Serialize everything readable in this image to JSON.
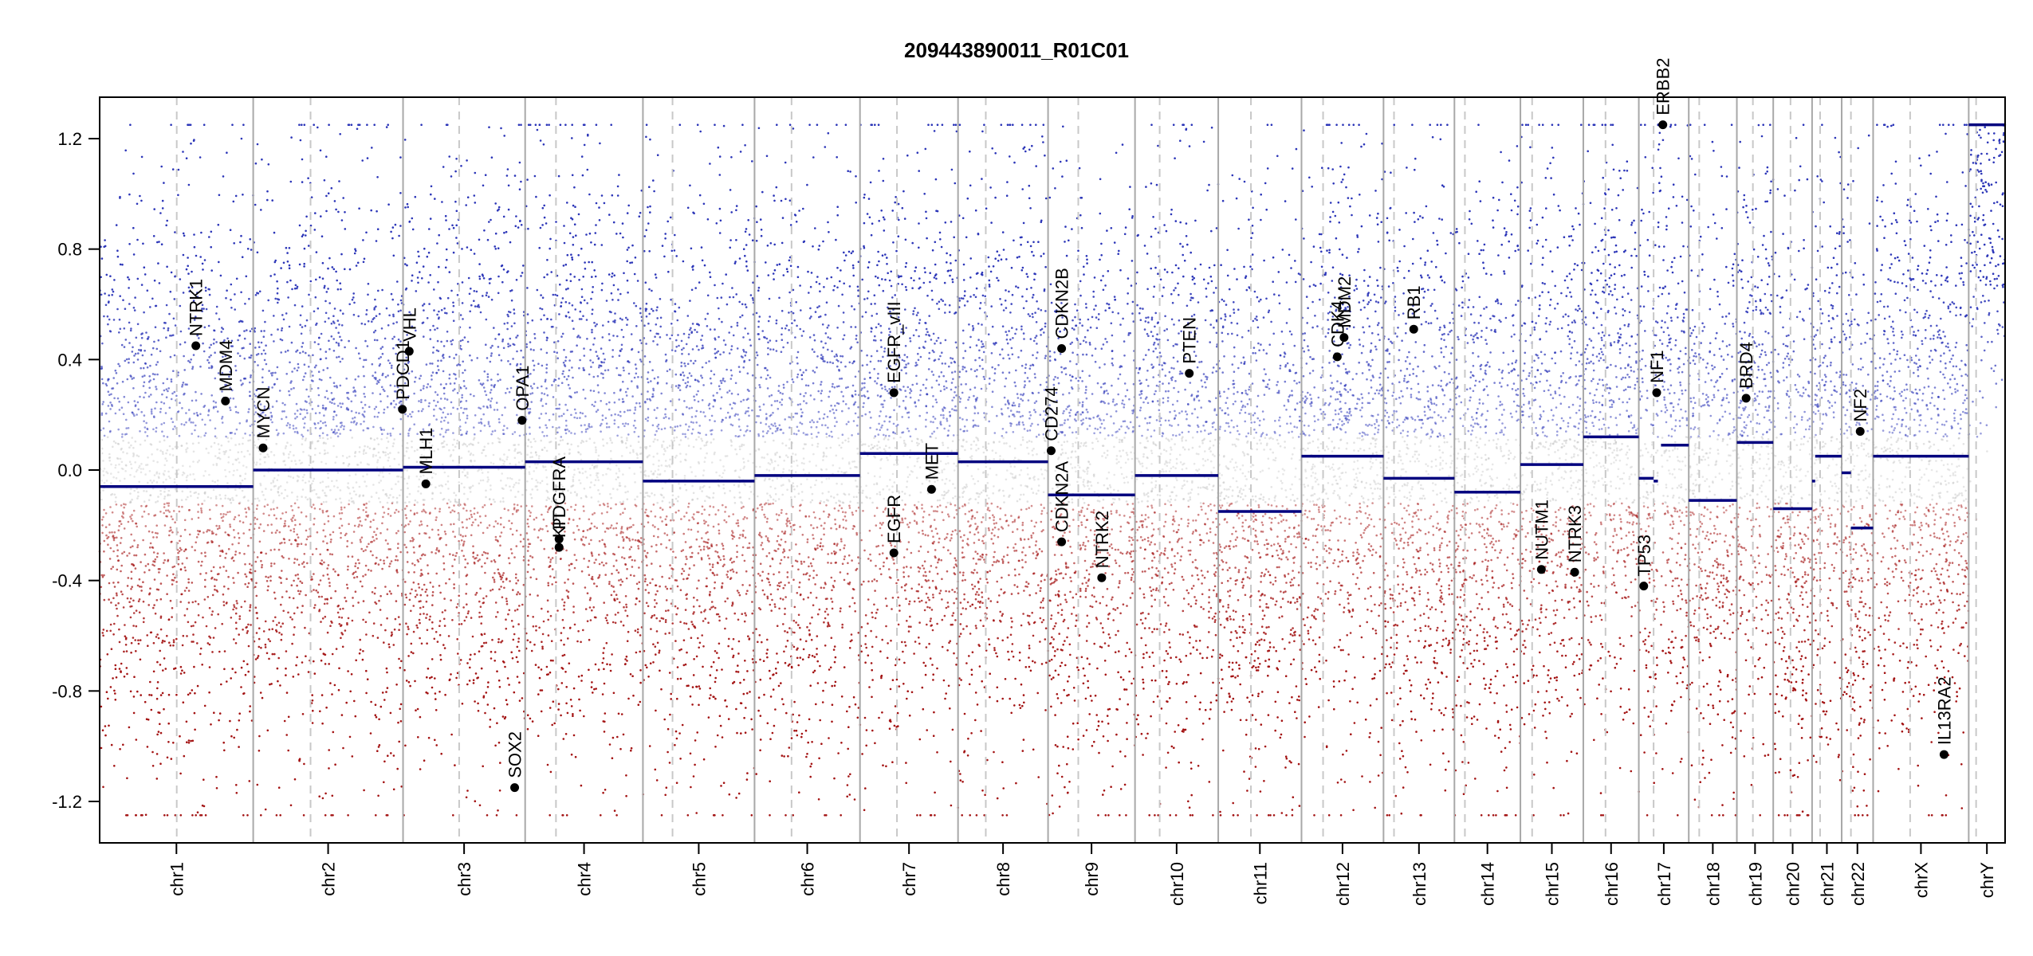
{
  "chart_data": {
    "type": "scatter",
    "title": "209443890011_R01C01",
    "xlabel": "",
    "ylabel": "",
    "ylim": [
      -1.35,
      1.35
    ],
    "yticks": [
      "1.2",
      "0.8",
      "0.4",
      "0.0",
      "-0.4",
      "-0.8",
      "-1.2"
    ],
    "ytick_values": [
      1.2,
      0.8,
      0.4,
      0.0,
      -0.4,
      -0.8,
      -1.2
    ],
    "grid": "chromosome boundaries (solid) and centromeres (dashed)",
    "colors": {
      "gain": "#2b35b8",
      "neutral": "#bdbdbd",
      "loss": "#a31212",
      "segment": "#00007f",
      "marker": "#000000"
    },
    "chromosomes": [
      {
        "name": "chr1",
        "length": 249,
        "cent": 125
      },
      {
        "name": "chr2",
        "length": 243,
        "cent": 93
      },
      {
        "name": "chr3",
        "length": 198,
        "cent": 91
      },
      {
        "name": "chr4",
        "length": 191,
        "cent": 50
      },
      {
        "name": "chr5",
        "length": 181,
        "cent": 48
      },
      {
        "name": "chr6",
        "length": 171,
        "cent": 60
      },
      {
        "name": "chr7",
        "length": 159,
        "cent": 60
      },
      {
        "name": "chr8",
        "length": 146,
        "cent": 45
      },
      {
        "name": "chr9",
        "length": 141,
        "cent": 49
      },
      {
        "name": "chr10",
        "length": 135,
        "cent": 40
      },
      {
        "name": "chr11",
        "length": 135,
        "cent": 53
      },
      {
        "name": "chr12",
        "length": 133,
        "cent": 35
      },
      {
        "name": "chr13",
        "length": 115,
        "cent": 17
      },
      {
        "name": "chr14",
        "length": 107,
        "cent": 17
      },
      {
        "name": "chr15",
        "length": 102,
        "cent": 19
      },
      {
        "name": "chr16",
        "length": 90,
        "cent": 36
      },
      {
        "name": "chr17",
        "length": 81,
        "cent": 24
      },
      {
        "name": "chr18",
        "length": 78,
        "cent": 17
      },
      {
        "name": "chr19",
        "length": 59,
        "cent": 26
      },
      {
        "name": "chr20",
        "length": 63,
        "cent": 28
      },
      {
        "name": "chr21",
        "length": 48,
        "cent": 13
      },
      {
        "name": "chr22",
        "length": 51,
        "cent": 15
      },
      {
        "name": "chrX",
        "length": 155,
        "cent": 60
      },
      {
        "name": "chrY",
        "length": 59,
        "cent": 12
      }
    ],
    "segments": [
      {
        "chr": "chr1",
        "start": 0,
        "end": 249,
        "value": -0.06
      },
      {
        "chr": "chr2",
        "start": 0,
        "end": 243,
        "value": 0.0
      },
      {
        "chr": "chr3",
        "start": 0,
        "end": 198,
        "value": 0.01
      },
      {
        "chr": "chr4",
        "start": 0,
        "end": 191,
        "value": 0.03
      },
      {
        "chr": "chr5",
        "start": 0,
        "end": 181,
        "value": -0.04
      },
      {
        "chr": "chr6",
        "start": 0,
        "end": 171,
        "value": -0.02
      },
      {
        "chr": "chr7",
        "start": 0,
        "end": 159,
        "value": 0.06
      },
      {
        "chr": "chr8",
        "start": 0,
        "end": 146,
        "value": 0.03
      },
      {
        "chr": "chr9",
        "start": 0,
        "end": 141,
        "value": -0.09
      },
      {
        "chr": "chr10",
        "start": 0,
        "end": 135,
        "value": -0.02
      },
      {
        "chr": "chr11",
        "start": 0,
        "end": 135,
        "value": -0.15
      },
      {
        "chr": "chr12",
        "start": 0,
        "end": 133,
        "value": 0.05
      },
      {
        "chr": "chr13",
        "start": 0,
        "end": 115,
        "value": -0.03
      },
      {
        "chr": "chr14",
        "start": 0,
        "end": 107,
        "value": -0.08
      },
      {
        "chr": "chr15",
        "start": 0,
        "end": 102,
        "value": 0.02
      },
      {
        "chr": "chr16",
        "start": 0,
        "end": 90,
        "value": 0.12
      },
      {
        "chr": "chr17",
        "start": 0,
        "end": 24,
        "value": -0.03
      },
      {
        "chr": "chr17",
        "start": 24,
        "end": 31,
        "value": -0.04
      },
      {
        "chr": "chr17",
        "start": 31,
        "end": 36,
        "value": 1.25
      },
      {
        "chr": "chr17",
        "start": 36,
        "end": 81,
        "value": 0.09
      },
      {
        "chr": "chr18",
        "start": 0,
        "end": 78,
        "value": -0.11
      },
      {
        "chr": "chr19",
        "start": 0,
        "end": 59,
        "value": 0.1
      },
      {
        "chr": "chr20",
        "start": 0,
        "end": 63,
        "value": -0.14
      },
      {
        "chr": "chr21",
        "start": 0,
        "end": 5,
        "value": -0.04
      },
      {
        "chr": "chr21",
        "start": 5,
        "end": 48,
        "value": 0.05
      },
      {
        "chr": "chr22",
        "start": 0,
        "end": 15,
        "value": -0.01
      },
      {
        "chr": "chr22",
        "start": 15,
        "end": 51,
        "value": -0.21
      },
      {
        "chr": "chrX",
        "start": 0,
        "end": 155,
        "value": 0.05
      },
      {
        "chr": "chrY",
        "start": 0,
        "end": 59,
        "value": 1.25
      }
    ],
    "genes": [
      {
        "name": "NTRK1",
        "chr": "chr1",
        "pos": 156,
        "value": 0.45
      },
      {
        "name": "MDM4",
        "chr": "chr1",
        "pos": 204,
        "value": 0.25
      },
      {
        "name": "MYCN",
        "chr": "chr2",
        "pos": 16,
        "value": 0.08
      },
      {
        "name": "PDCD1",
        "chr": "chr2",
        "pos": 242,
        "value": 0.22
      },
      {
        "name": "VHL",
        "chr": "chr3",
        "pos": 10,
        "value": 0.43
      },
      {
        "name": "MLH1",
        "chr": "chr3",
        "pos": 37,
        "value": -0.05
      },
      {
        "name": "SOX2",
        "chr": "chr3",
        "pos": 181,
        "value": -1.15
      },
      {
        "name": "OPA1",
        "chr": "chr3",
        "pos": 193,
        "value": 0.18
      },
      {
        "name": "PDGFRA",
        "chr": "chr4",
        "pos": 55,
        "value": -0.25
      },
      {
        "name": "KIT",
        "chr": "chr4",
        "pos": 55,
        "value": -0.28
      },
      {
        "name": "EGFR_vIII",
        "chr": "chr7",
        "pos": 55,
        "value": 0.28
      },
      {
        "name": "EGFR",
        "chr": "chr7",
        "pos": 55,
        "value": -0.3
      },
      {
        "name": "MET",
        "chr": "chr7",
        "pos": 116,
        "value": -0.07
      },
      {
        "name": "CD274",
        "chr": "chr9",
        "pos": 5,
        "value": 0.07
      },
      {
        "name": "CDKN2B",
        "chr": "chr9",
        "pos": 22,
        "value": 0.44
      },
      {
        "name": "CDKN2A",
        "chr": "chr9",
        "pos": 22,
        "value": -0.26
      },
      {
        "name": "NTRK2",
        "chr": "chr9",
        "pos": 87,
        "value": -0.39
      },
      {
        "name": "PTEN",
        "chr": "chr10",
        "pos": 88,
        "value": 0.35
      },
      {
        "name": "CDK4",
        "chr": "chr12",
        "pos": 58,
        "value": 0.41
      },
      {
        "name": "MDM2",
        "chr": "chr12",
        "pos": 69,
        "value": 0.48
      },
      {
        "name": "RB1",
        "chr": "chr13",
        "pos": 49,
        "value": 0.51
      },
      {
        "name": "NUTM1",
        "chr": "chr15",
        "pos": 34,
        "value": -0.36
      },
      {
        "name": "NTRK3",
        "chr": "chr15",
        "pos": 88,
        "value": -0.37
      },
      {
        "name": "TP53",
        "chr": "chr17",
        "pos": 8,
        "value": -0.42
      },
      {
        "name": "NF1",
        "chr": "chr17",
        "pos": 29,
        "value": 0.28
      },
      {
        "name": "ERBB2",
        "chr": "chr17",
        "pos": 39,
        "value": 1.25
      },
      {
        "name": "BRD4",
        "chr": "chr19",
        "pos": 15,
        "value": 0.26
      },
      {
        "name": "NF2",
        "chr": "chr22",
        "pos": 30,
        "value": 0.14
      },
      {
        "name": "IL13RA2",
        "chr": "chrX",
        "pos": 115,
        "value": -1.03
      }
    ]
  }
}
